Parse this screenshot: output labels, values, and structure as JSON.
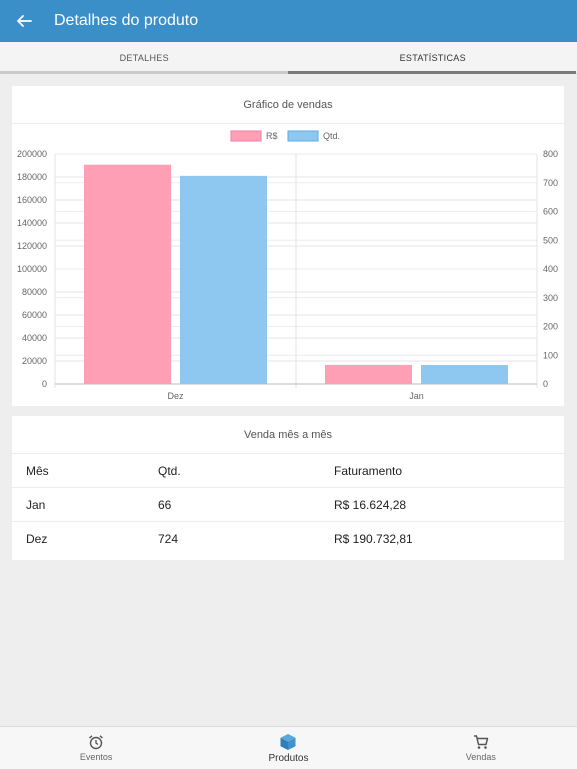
{
  "header": {
    "title": "Detalhes do produto",
    "back_icon": "arrow-left-icon"
  },
  "tabs": [
    {
      "label": "DETALHES",
      "active": false
    },
    {
      "label": "ESTATÍSTICAS",
      "active": true
    }
  ],
  "chart_card": {
    "title": "Gráfico de vendas"
  },
  "chart_data": {
    "type": "bar",
    "title": "",
    "categories": [
      "Dez",
      "Jan"
    ],
    "series": [
      {
        "name": "R$",
        "axis": "left",
        "color": "#ff9fb6",
        "values": [
          190732.81,
          16624.28
        ]
      },
      {
        "name": "Qtd.",
        "axis": "right",
        "color": "#8ec8f0",
        "values": [
          724,
          66
        ]
      }
    ],
    "y_left": {
      "min": 0,
      "max": 200000,
      "ticks": [
        "0",
        "20000",
        "40000",
        "60000",
        "80000",
        "100000",
        "120000",
        "140000",
        "160000",
        "180000",
        "200000"
      ]
    },
    "y_right": {
      "min": 0,
      "max": 800,
      "ticks": [
        "0",
        "100",
        "200",
        "300",
        "400",
        "500",
        "600",
        "700",
        "800"
      ]
    },
    "legend": "top-center",
    "grid": true
  },
  "table_card": {
    "title": "Venda mês a mês",
    "columns": [
      "Mês",
      "Qtd.",
      "Faturamento"
    ],
    "rows": [
      [
        "Jan",
        "66",
        "R$ 16.624,28"
      ],
      [
        "Dez",
        "724",
        "R$ 190.732,81"
      ]
    ]
  },
  "bottom_nav": [
    {
      "label": "Eventos",
      "icon": "alarm-clock-icon",
      "active": false
    },
    {
      "label": "Produtos",
      "icon": "cube-icon",
      "active": true
    },
    {
      "label": "Vendas",
      "icon": "cart-icon",
      "active": false
    }
  ]
}
